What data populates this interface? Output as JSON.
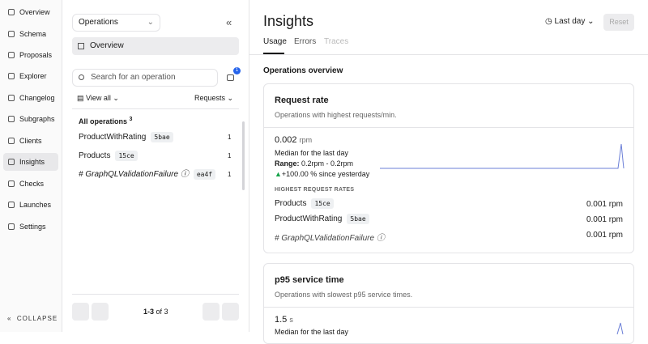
{
  "nav": {
    "items": [
      "Overview",
      "Schema",
      "Proposals",
      "Explorer",
      "Changelog",
      "Subgraphs",
      "Clients",
      "Insights",
      "Checks",
      "Launches",
      "Settings"
    ],
    "collapse": "COLLAPSE"
  },
  "panel": {
    "select": "Operations",
    "overview": "Overview",
    "search": "Search for an operation",
    "badge": "1",
    "view": "View all",
    "sort": "Requests",
    "all_label": "All operations",
    "all_count": "3",
    "operations": [
      {
        "name": "ProductWithRating",
        "hash": "5bae",
        "count": "1"
      },
      {
        "name": "Products",
        "hash": "15ce",
        "count": "1"
      },
      {
        "name": "# GraphQLValidationFailure",
        "hash": "ea4f",
        "count": "1"
      }
    ],
    "page_range": "1-3",
    "page_total": "of 3"
  },
  "main": {
    "title": "Insights",
    "range": "Last day",
    "reset": "Reset",
    "tabs": [
      "Usage",
      "Errors",
      "Traces"
    ],
    "section": "Operations overview",
    "cards": [
      {
        "title": "Request rate",
        "subtitle": "Operations with highest requests/min.",
        "value": "0.002",
        "unit": "rpm",
        "median": "Median for the last day",
        "range_label": "Range:",
        "range": "0.2rpm - 0.2rpm",
        "change": "+100.00 % since yesterday",
        "list_heading": "HIGHEST REQUEST RATES",
        "rows": [
          {
            "name": "Products",
            "hash": "15ce",
            "value": "0.001 rpm"
          },
          {
            "name": "ProductWithRating",
            "hash": "5bae",
            "value": "0.001 rpm"
          },
          {
            "name": "# GraphQLValidationFailure",
            "value": "0.001 rpm"
          }
        ]
      },
      {
        "title": "p95 service time",
        "subtitle": "Operations with slowest p95 service times.",
        "value": "1.5",
        "unit": "s",
        "median": "Median for the last day"
      }
    ]
  }
}
